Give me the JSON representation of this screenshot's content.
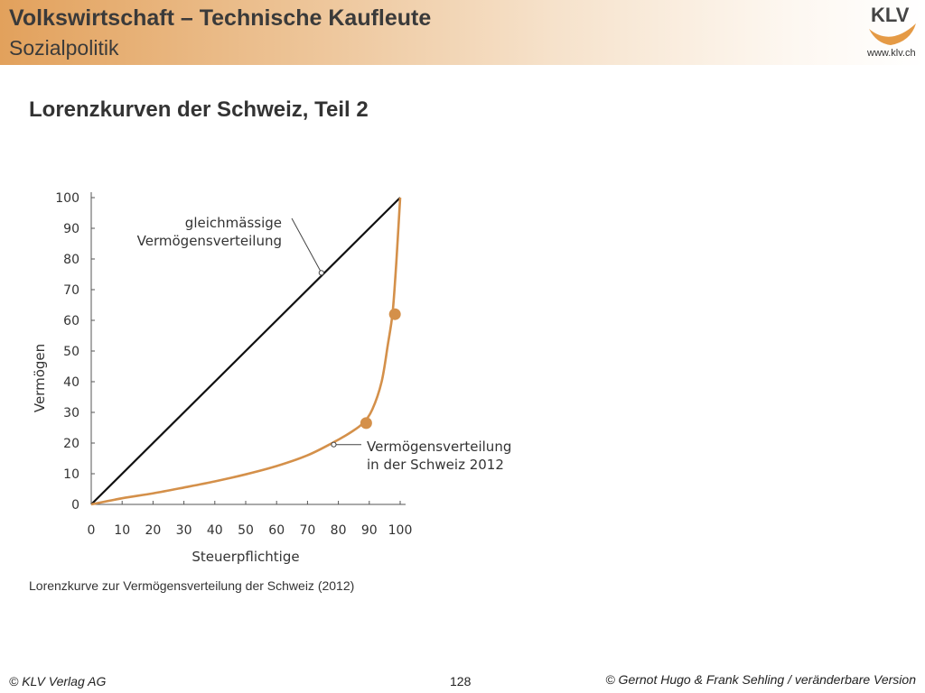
{
  "header": {
    "title": "Volkswirtschaft – Technische Kaufleute",
    "subtitle": "Sozialpolitik",
    "logo_text": "KLV",
    "logo_url": "www.klv.ch"
  },
  "slide": {
    "title": "Lorenzkurven der Schweiz, Teil 2",
    "caption": "Lorenzkurve zur Vermögensverteilung der Schweiz (2012)"
  },
  "footer": {
    "left": "© KLV Verlag AG",
    "page": "128",
    "right": "© Gernot Hugo & Frank Sehling / veränderbare Version"
  },
  "colors": {
    "accent": "#d4904a",
    "equality_line": "#111111"
  },
  "chart_data": {
    "type": "line",
    "xlabel": "Steuerpflichtige",
    "ylabel": "Vermögen",
    "xlim": [
      0,
      100
    ],
    "ylim": [
      0,
      100
    ],
    "xticks": [
      "0",
      "10",
      "20",
      "30",
      "40",
      "50",
      "60",
      "70",
      "80",
      "90",
      "100"
    ],
    "yticks": [
      "0",
      "10",
      "20",
      "30",
      "40",
      "50",
      "60",
      "70",
      "80",
      "90",
      "100"
    ],
    "grid": false,
    "series": [
      {
        "name": "gleichmässige Vermögensverteilung",
        "label_lines": [
          "gleichmässige",
          "Vermögensverteilung"
        ],
        "x": [
          0,
          100
        ],
        "y": [
          0,
          100
        ]
      },
      {
        "name": "Vermögensverteilung in der Schweiz 2012",
        "label_lines": [
          "Vermögensverteilung",
          "in der Schweiz 2012"
        ],
        "x": [
          0,
          10,
          20,
          30,
          40,
          50,
          60,
          70,
          78,
          84,
          88,
          91,
          94,
          96,
          97.5,
          98.5,
          99.3,
          100
        ],
        "y": [
          0,
          2,
          3.6,
          5.5,
          7.5,
          9.8,
          12.5,
          16,
          20,
          23.5,
          26.5,
          31,
          40,
          52,
          62,
          75,
          88,
          100
        ]
      }
    ],
    "highlighted_points": [
      {
        "x": 89,
        "y": 26.5
      },
      {
        "x": 98.3,
        "y": 62
      }
    ],
    "annotation_anchors": [
      {
        "series": 0,
        "x": 74.5,
        "y": 75.5
      },
      {
        "series": 1,
        "x": 78.5,
        "y": 19.5
      }
    ]
  }
}
